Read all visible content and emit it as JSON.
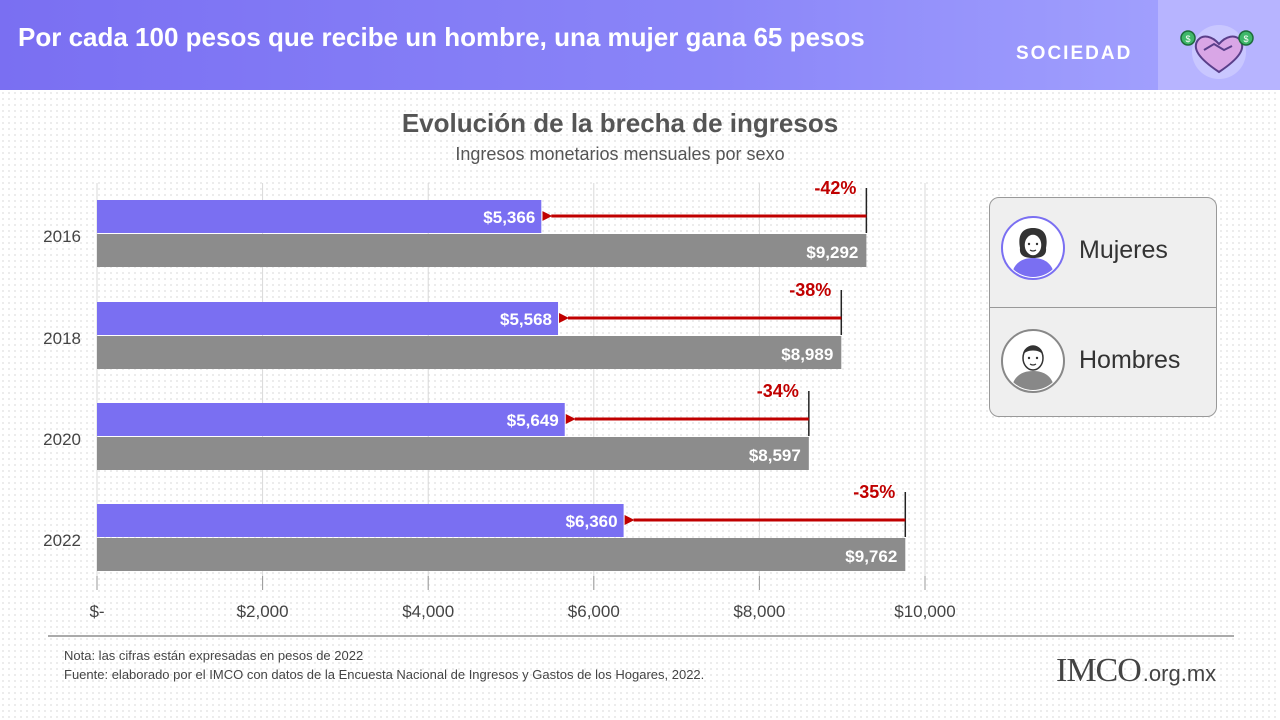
{
  "header": {
    "title": "Por cada 100 pesos que recibe un hombre, una mujer gana 65 pesos",
    "section": "SOCIEDAD",
    "icon": "handshake-money-heart-icon"
  },
  "colors": {
    "header": "#7a6ff2",
    "mujeres": "#7a6ff2",
    "hombres": "#8c8c8c",
    "gap": "#c00000"
  },
  "chart_data": {
    "type": "bar",
    "orientation": "horizontal",
    "title": "Evolución de la brecha de ingresos",
    "subtitle": "Ingresos monetarios mensuales por sexo",
    "categories": [
      "2016",
      "2018",
      "2020",
      "2022"
    ],
    "series": [
      {
        "name": "Mujeres",
        "values": [
          5366,
          5568,
          5649,
          6360
        ],
        "labels": [
          "$5,366",
          "$5,568",
          "$5,649",
          "$6,360"
        ]
      },
      {
        "name": "Hombres",
        "values": [
          9292,
          8989,
          8597,
          9762
        ],
        "labels": [
          "$9,292",
          "$8,989",
          "$8,597",
          "$9,762"
        ]
      }
    ],
    "gap_labels": [
      "-42%",
      "-38%",
      "-34%",
      "-35%"
    ],
    "xlim": [
      0,
      10000
    ],
    "xticks": [
      0,
      2000,
      4000,
      6000,
      8000,
      10000
    ],
    "xtick_labels": [
      "$-",
      "$2,000",
      "$4,000",
      "$6,000",
      "$8,000",
      "$10,000"
    ],
    "grid": true,
    "legend_position": "right"
  },
  "legend": {
    "mujeres_label": "Mujeres",
    "hombres_label": "Hombres",
    "mujeres_icon": "woman-avatar-icon",
    "hombres_icon": "man-avatar-icon"
  },
  "footer": {
    "note": "Nota: las cifras están expresadas en pesos de 2022",
    "source": "Fuente: elaborado por el IMCO con datos de la Encuesta Nacional de Ingresos y Gastos de los Hogares, 2022.",
    "logo_main": "IMCO",
    "logo_suffix": ".org.mx"
  }
}
